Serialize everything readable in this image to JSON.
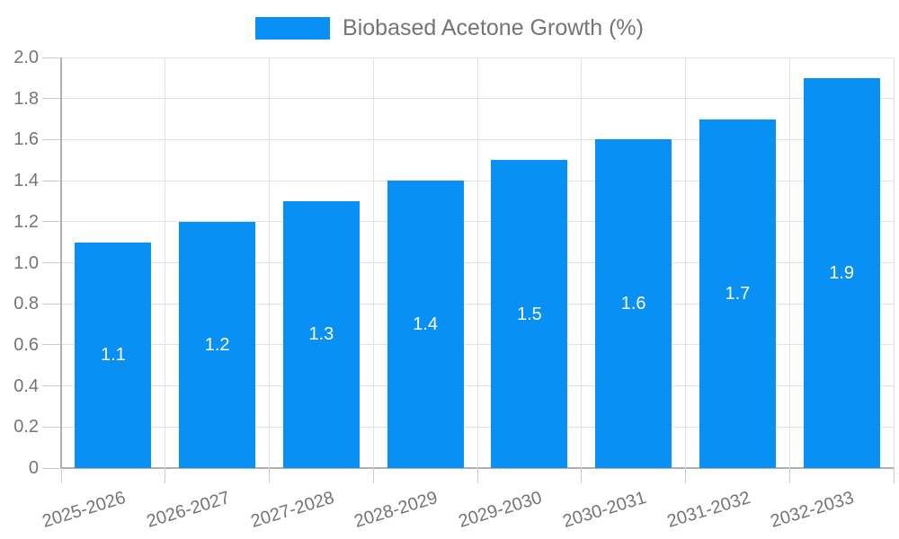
{
  "chart_data": {
    "type": "bar",
    "legend_label": "Biobased Acetone Growth (%)",
    "legend_position": "top",
    "categories": [
      "2025-2026",
      "2026-2027",
      "2027-2028",
      "2028-2029",
      "2029-2030",
      "2030-2031",
      "2031-2032",
      "2032-2033"
    ],
    "values": [
      1.1,
      1.2,
      1.3,
      1.4,
      1.5,
      1.6,
      1.7,
      1.9
    ],
    "value_labels": [
      "1.1",
      "1.2",
      "1.3",
      "1.4",
      "1.5",
      "1.6",
      "1.7",
      "1.9"
    ],
    "ylim": [
      0,
      2.0
    ],
    "ytick_labels": [
      "0",
      "0.2",
      "0.4",
      "0.6",
      "0.8",
      "1.0",
      "1.2",
      "1.4",
      "1.6",
      "1.8",
      "2.0"
    ],
    "grid": true,
    "x_label_rotation_deg": -17,
    "colors": {
      "bar": "#0990F5",
      "bar_label": "#FFFFFF",
      "grid": "#E2E2E2",
      "axis": "#B0B0B0",
      "tick": "#CCCCCC",
      "text": "#757575",
      "background": "#FFFFFF"
    }
  }
}
